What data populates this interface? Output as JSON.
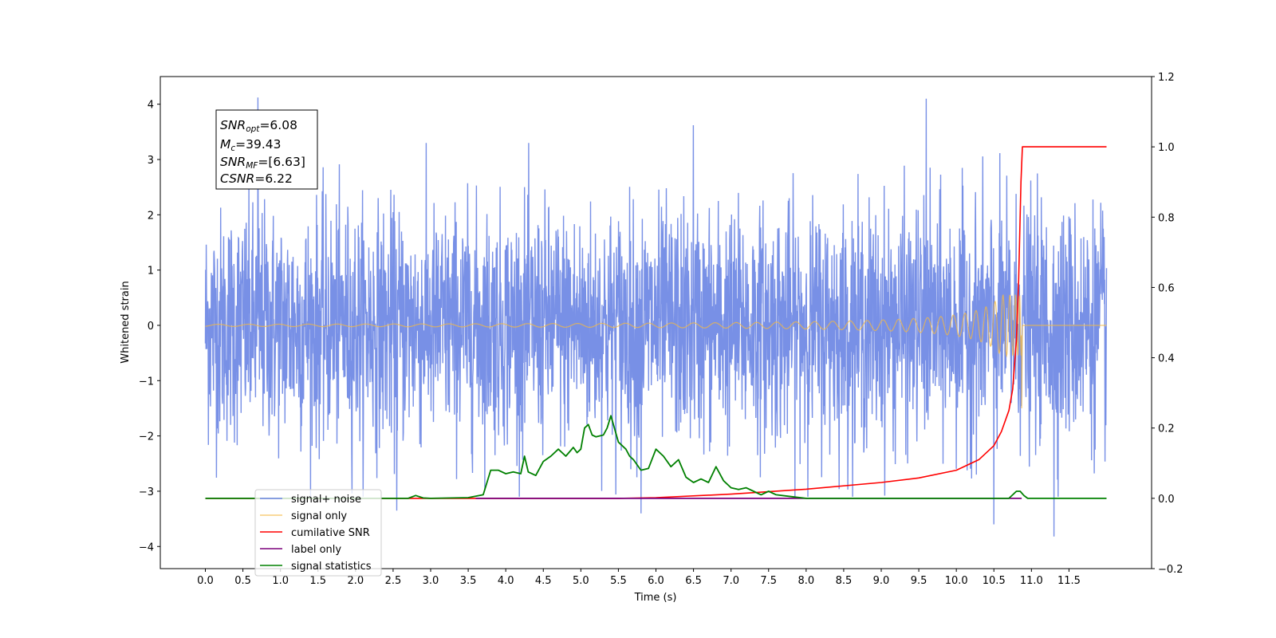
{
  "chart_data": {
    "type": "line",
    "title": "",
    "xlabel": "Time (s)",
    "ylabel_left": "Whitened strain",
    "ylabel_right": "",
    "xlim": [
      -0.6,
      12.6
    ],
    "ylim_left": [
      -4.4,
      4.5
    ],
    "ylim_right": [
      -0.2,
      1.2
    ],
    "x_ticks": [
      "0.0",
      "0.5",
      "1.0",
      "1.5",
      "2.0",
      "2.5",
      "3.0",
      "3.5",
      "4.0",
      "4.5",
      "5.0",
      "5.5",
      "6.0",
      "6.5",
      "7.0",
      "7.5",
      "8.0",
      "8.5",
      "9.0",
      "9.5",
      "10.0",
      "10.5",
      "11.0",
      "11.5"
    ],
    "y_ticks_left": [
      "4",
      "3",
      "2",
      "1",
      "0",
      "−1",
      "−2",
      "−3",
      "−4"
    ],
    "y_ticks_right": [
      "1.2",
      "1.0",
      "0.8",
      "0.6",
      "0.4",
      "0.2",
      "0.0",
      "−0.2"
    ],
    "grid": false,
    "legend_position": "lower-left",
    "annotation": {
      "line1_sym": "SNR",
      "line1_sub": "opt",
      "line1_val": "=6.08",
      "line2_sym": "M",
      "line2_sub": "c",
      "line2_val": "=39.43",
      "line3_sym": "SNR",
      "line3_sub": "MF",
      "line3_val": "=[6.63]",
      "line4_sym": "CSNR",
      "line4_val": "=6.22"
    },
    "series": [
      {
        "name": "signal+ noise",
        "axis": "left",
        "color": "#6c87e4",
        "description_values": {
          "x_start": 0.0,
          "x_end": 12.0,
          "mean": 0,
          "amplitude_range": [
            -3.8,
            4.1
          ]
        },
        "spikes": [
          [
            0.7,
            4.12
          ],
          [
            9.6,
            4.1
          ],
          [
            6.5,
            3.62
          ],
          [
            11.3,
            -3.82
          ],
          [
            10.5,
            -3.6
          ],
          [
            5.8,
            -3.4
          ],
          [
            2.55,
            -3.35
          ]
        ]
      },
      {
        "name": "signal only",
        "axis": "left",
        "color": "#f5b942",
        "chirp": {
          "x_start": 0.0,
          "merger": 10.87,
          "peak_amplitude": 0.55,
          "final_dip": -1.5
        }
      },
      {
        "name": "cumilative SNR",
        "axis": "right",
        "color": "#ff0000",
        "x": [
          0,
          5.5,
          6.0,
          7.0,
          8.0,
          9.0,
          9.5,
          10.0,
          10.3,
          10.5,
          10.6,
          10.7,
          10.75,
          10.8,
          10.83,
          10.86,
          10.88,
          11.0,
          12.0
        ],
        "values": [
          0,
          0,
          0.002,
          0.012,
          0.026,
          0.045,
          0.058,
          0.08,
          0.11,
          0.15,
          0.19,
          0.25,
          0.31,
          0.45,
          0.62,
          0.9,
          1.0,
          1.0,
          1.0
        ]
      },
      {
        "name": "label only",
        "axis": "right",
        "color": "#7b007b",
        "x": [
          3.6,
          10.87
        ],
        "values": [
          0.0,
          0.0
        ]
      },
      {
        "name": "signal statistics",
        "axis": "right",
        "color": "#008000",
        "x": [
          0,
          2.7,
          2.8,
          2.9,
          3.0,
          3.5,
          3.7,
          3.8,
          3.9,
          4.0,
          4.1,
          4.2,
          4.25,
          4.3,
          4.4,
          4.5,
          4.6,
          4.7,
          4.8,
          4.9,
          4.95,
          5.0,
          5.05,
          5.1,
          5.15,
          5.2,
          5.3,
          5.35,
          5.4,
          5.5,
          5.6,
          5.65,
          5.7,
          5.8,
          5.9,
          6.0,
          6.1,
          6.2,
          6.3,
          6.4,
          6.5,
          6.6,
          6.7,
          6.8,
          6.9,
          7.0,
          7.1,
          7.2,
          7.3,
          7.4,
          7.5,
          7.6,
          7.8,
          8.0,
          8.5,
          10.7,
          10.8,
          10.85,
          10.9,
          10.95,
          12.0
        ],
        "values": [
          0,
          0,
          0.008,
          0.001,
          0,
          0.002,
          0.01,
          0.08,
          0.08,
          0.07,
          0.075,
          0.07,
          0.12,
          0.075,
          0.065,
          0.105,
          0.12,
          0.14,
          0.12,
          0.145,
          0.13,
          0.14,
          0.2,
          0.21,
          0.18,
          0.175,
          0.18,
          0.2,
          0.235,
          0.16,
          0.14,
          0.12,
          0.11,
          0.08,
          0.085,
          0.14,
          0.12,
          0.09,
          0.11,
          0.06,
          0.045,
          0.055,
          0.045,
          0.09,
          0.05,
          0.03,
          0.025,
          0.03,
          0.02,
          0.01,
          0.02,
          0.01,
          0.005,
          0,
          0,
          0,
          0.02,
          0.02,
          0.008,
          0,
          0
        ]
      }
    ]
  }
}
